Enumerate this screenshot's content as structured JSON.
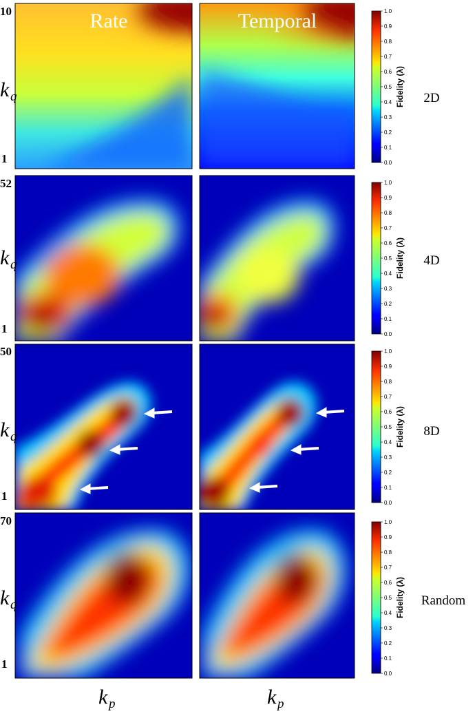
{
  "chart_data": {
    "type": "heatmap",
    "columns": [
      "Rate",
      "Temporal"
    ],
    "xlabel": {
      "main": "k",
      "sub": "p"
    },
    "ylabel": {
      "main": "k",
      "sub": "q"
    },
    "colorbar": {
      "label": "Fidelity (λ)",
      "ticks": [
        "0.0",
        "0.1",
        "0.2",
        "0.3",
        "0.4",
        "0.5",
        "0.6",
        "0.7",
        "0.8",
        "0.9",
        "1.0"
      ],
      "range": [
        0,
        1
      ],
      "colormap": "jet"
    },
    "rows": [
      {
        "label": "2D",
        "ylim_labels": {
          "top": "10",
          "bottom": "1"
        },
        "ylim": [
          1,
          10
        ]
      },
      {
        "label": "4D",
        "ylim_labels": {
          "top": "52",
          "bottom": "1"
        },
        "ylim": [
          1,
          52
        ]
      },
      {
        "label": "8D",
        "ylim_labels": {
          "top": "50",
          "bottom": "1"
        },
        "ylim": [
          1,
          50
        ]
      },
      {
        "label": "Random",
        "ylim_labels": {
          "top": "70",
          "bottom": "1"
        },
        "ylim": [
          1,
          70
        ]
      }
    ],
    "annotations": [
      {
        "row": 2,
        "col": 0,
        "type": "arrow",
        "count": 3,
        "color": "#ffffff"
      },
      {
        "row": 2,
        "col": 1,
        "type": "arrow",
        "count": 3,
        "color": "#ffffff"
      }
    ]
  }
}
